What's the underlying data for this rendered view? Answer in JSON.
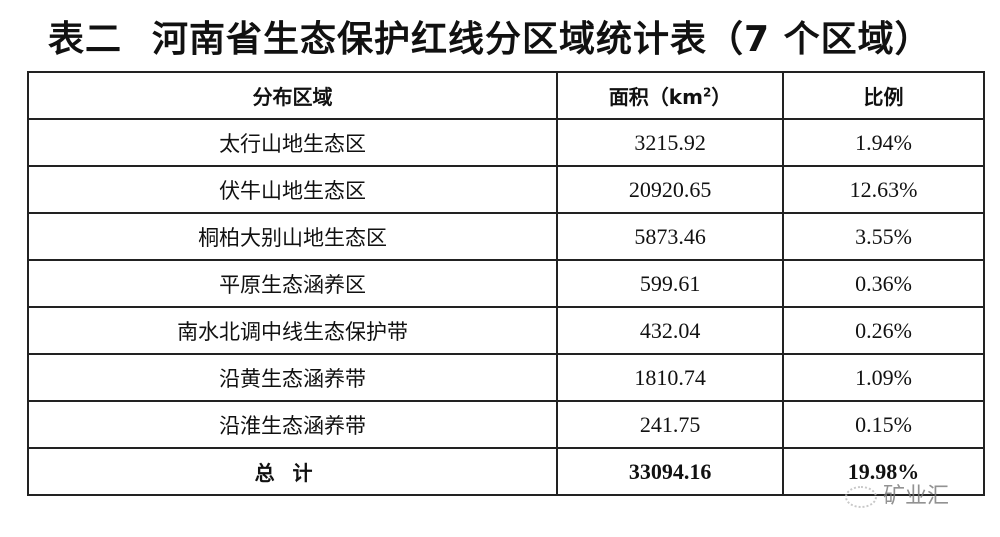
{
  "title": {
    "prefix": "表二",
    "main": "河南省生态保护红线分区域统计表（7 个区域）"
  },
  "table": {
    "headers": {
      "region": "分布区域",
      "area": "面积（km",
      "area_sup": "2",
      "area_close": "）",
      "ratio": "比例"
    },
    "rows": [
      {
        "region": "太行山地生态区",
        "area": "3215.92",
        "ratio": "1.94%"
      },
      {
        "region": "伏牛山地生态区",
        "area": "20920.65",
        "ratio": "12.63%"
      },
      {
        "region": "桐柏大别山地生态区",
        "area": "5873.46",
        "ratio": "3.55%"
      },
      {
        "region": "平原生态涵养区",
        "area": "599.61",
        "ratio": "0.36%"
      },
      {
        "region": "南水北调中线生态保护带",
        "area": "432.04",
        "ratio": "0.26%"
      },
      {
        "region": "沿黄生态涵养带",
        "area": "1810.74",
        "ratio": "1.09%"
      },
      {
        "region": "沿淮生态涵养带",
        "area": "241.75",
        "ratio": "0.15%"
      }
    ],
    "total": {
      "label": "总计",
      "area": "33094.16",
      "ratio": "19.98%"
    }
  },
  "watermark": "矿业汇"
}
